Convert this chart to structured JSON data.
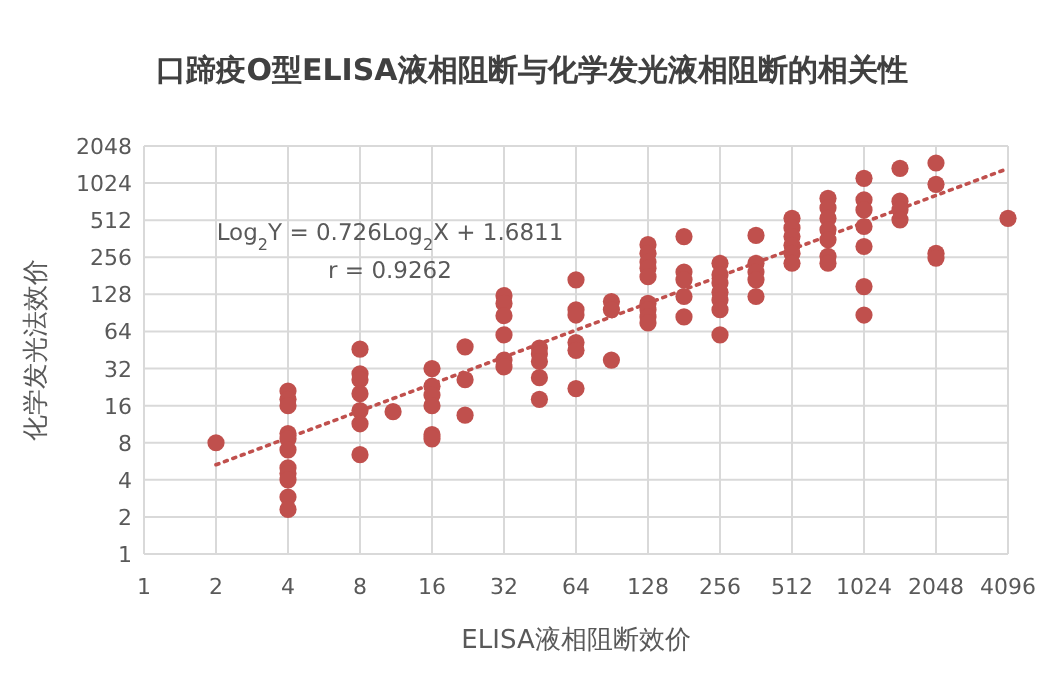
{
  "chart_data": {
    "type": "scatter",
    "title": "口蹄疫O型ELISA液相阻断与化学发光液相阻断的相关性",
    "xlabel": "ELISA液相阻断效价",
    "ylabel": "化学发光法效价",
    "log": "xy",
    "grid": true,
    "xlim": [
      1,
      4096
    ],
    "xticks": [
      1,
      2,
      4,
      8,
      16,
      32,
      64,
      128,
      256,
      512,
      1024,
      2048,
      4096
    ],
    "ylim": [
      1,
      2048
    ],
    "yticks": [
      1,
      2,
      4,
      8,
      16,
      32,
      64,
      128,
      256,
      512,
      1024,
      2048
    ],
    "annotations": [
      "Log$_{2}$Y = 0.726Log$_{2}$X + 1.6811",
      "r = 0.9262"
    ],
    "series": [
      {
        "color": "#c0504d",
        "marker": "circle",
        "x": [
          2,
          4,
          4,
          4,
          4,
          4,
          4,
          4,
          4,
          4,
          4,
          4,
          8,
          8,
          8,
          8,
          8,
          8,
          8,
          11,
          16,
          16,
          16,
          16,
          16,
          16,
          22,
          22,
          22,
          32,
          32,
          32,
          32,
          32,
          32,
          45,
          45,
          45,
          45,
          45,
          64,
          64,
          64,
          64,
          64,
          64,
          90,
          90,
          90,
          128,
          128,
          128,
          128,
          128,
          128,
          128,
          128,
          128,
          181,
          181,
          181,
          181,
          181,
          256,
          256,
          256,
          256,
          256,
          256,
          256,
          362,
          362,
          362,
          362,
          362,
          512,
          512,
          512,
          512,
          512,
          512,
          724,
          724,
          724,
          724,
          724,
          724,
          724,
          1024,
          1024,
          1024,
          1024,
          1024,
          1024,
          1024,
          1448,
          1448,
          1448,
          1448,
          2048,
          2048,
          2048,
          2048,
          4096
        ],
        "values": [
          8,
          21,
          18,
          16,
          9.5,
          8.6,
          7,
          5,
          4.5,
          4,
          2.9,
          2.3,
          46,
          29,
          26,
          20,
          14.6,
          11.4,
          6.4,
          14.3,
          32,
          23,
          19.5,
          16,
          9.3,
          8.6,
          48,
          26,
          13.4,
          125,
          108,
          86,
          60,
          37.5,
          33,
          47,
          42,
          36.5,
          27,
          18,
          168,
          96,
          87,
          52,
          45,
          22,
          112,
          96,
          37.5,
          324,
          276,
          234,
          209,
          178,
          108,
          96,
          84,
          75,
          377,
          194,
          168,
          123,
          84,
          229,
          185,
          158,
          133,
          115,
          96,
          60,
          385,
          229,
          194,
          168,
          123,
          530,
          443,
          377,
          320,
          276,
          229,
          770,
          644,
          530,
          428,
          355,
          260,
          229,
          1120,
          750,
          620,
          455,
          313,
          148,
          87,
          1350,
          730,
          620,
          515,
          1490,
          1000,
          276,
          252,
          530
        ]
      },
      {
        "type": "line",
        "color": "#c0504d",
        "line_style": "dotted",
        "x": [
          2,
          4096
        ],
        "values": [
          5.3,
          1345
        ]
      }
    ]
  }
}
